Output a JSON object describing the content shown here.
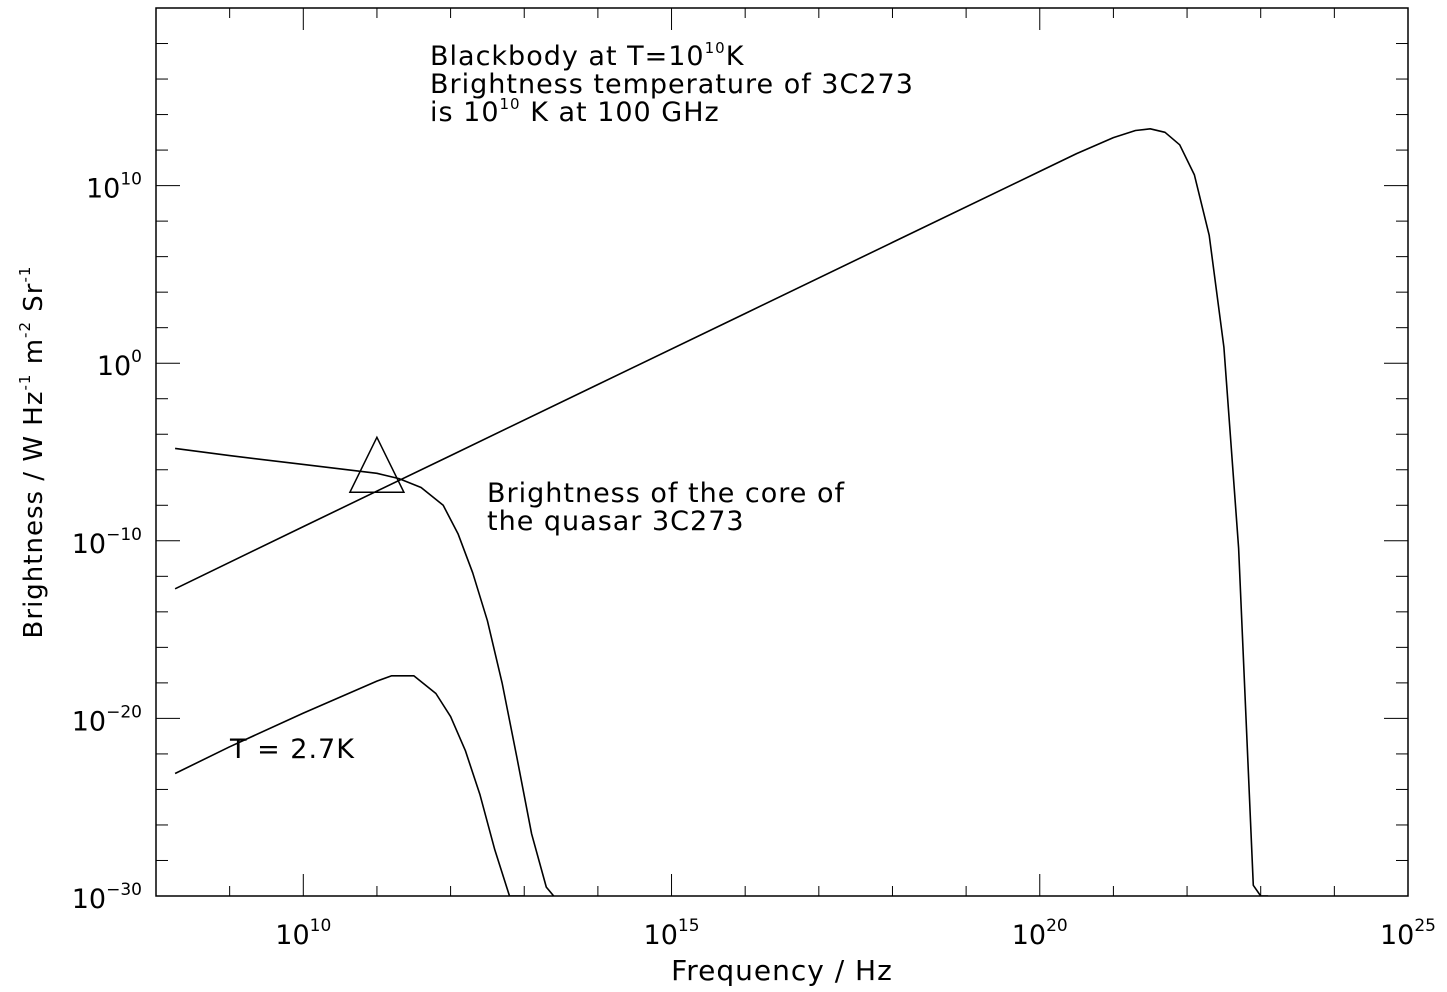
{
  "chart_data": {
    "type": "line",
    "xlabel": "Frequency / Hz",
    "ylabel_parts": [
      "Brightness / W Hz",
      "-1",
      " m",
      "-2",
      " Sr",
      "-1"
    ],
    "xscale": "log",
    "yscale": "log",
    "xlim_log10": [
      8,
      25
    ],
    "ylim_log10": [
      -30,
      20
    ],
    "x_ticks": [
      {
        "base": "10",
        "exp": "10",
        "log": 10
      },
      {
        "base": "10",
        "exp": "15",
        "log": 15
      },
      {
        "base": "10",
        "exp": "20",
        "log": 20
      },
      {
        "base": "10",
        "exp": "25",
        "log": 25
      }
    ],
    "y_ticks": [
      {
        "base": "10",
        "exp": "10",
        "log": 10
      },
      {
        "base": "10",
        "exp": "0",
        "log": 0
      },
      {
        "base": "10",
        "exp": "−10",
        "log": -10
      },
      {
        "base": "10",
        "exp": "−20",
        "log": -20
      },
      {
        "base": "10",
        "exp": "−30",
        "log": -30
      }
    ],
    "grid": false,
    "series": [
      {
        "temperature_K": 10000000000.0,
        "log10_x": [
          8.26,
          10,
          12,
          14,
          16,
          18,
          20,
          20.5,
          21,
          21.3,
          21.5,
          21.7,
          21.9,
          22.1,
          22.3,
          22.5,
          22.7,
          22.9,
          23.0,
          23.1
        ],
        "log10_y": [
          -12.7,
          -9.2,
          -5.2,
          -1.2,
          2.8,
          6.8,
          10.8,
          11.8,
          12.7,
          13.1,
          13.2,
          13.0,
          12.3,
          10.6,
          7.2,
          0.9,
          -10.4,
          -29.4,
          -30,
          -30
        ]
      },
      {
        "log10_x": [
          8.26,
          9,
          10,
          11,
          11.3,
          11.6,
          11.9,
          12.1,
          12.3,
          12.5,
          12.7,
          12.9,
          13.1,
          13.3,
          13.4
        ],
        "log10_y": [
          -4.8,
          -5.2,
          -5.7,
          -6.2,
          -6.5,
          -7.0,
          -8.0,
          -9.6,
          -11.8,
          -14.5,
          -18.0,
          -22.2,
          -26.5,
          -29.5,
          -30
        ]
      },
      {
        "temperature_K": 2.7,
        "log10_x": [
          8.26,
          9,
          10,
          10.5,
          11,
          11.2,
          11.5,
          11.8,
          12.0,
          12.2,
          12.4,
          12.6,
          12.8,
          13.0
        ],
        "log10_y": [
          -23.1,
          -21.6,
          -19.7,
          -18.8,
          -17.9,
          -17.6,
          -17.6,
          -18.6,
          -19.9,
          -21.8,
          -24.3,
          -27.4,
          -30,
          -30
        ]
      }
    ],
    "markers": [
      {
        "shape": "triangle",
        "log10_x": 11.0,
        "log10_y": -7.1
      }
    ],
    "annotations": [
      {
        "lines": [
          [
            {
              "t": "Blackbody at T=10"
            },
            {
              "t": "10",
              "sup": true
            },
            {
              "t": "K"
            }
          ],
          [
            {
              "t": "Brightness temperature of 3C273"
            }
          ],
          [
            {
              "t": "is 10"
            },
            {
              "t": "10",
              "sup": true
            },
            {
              "t": " K at 100 GHz"
            }
          ]
        ]
      },
      {
        "lines": [
          [
            {
              "t": "Brightness of the core of"
            }
          ],
          [
            {
              "t": " the quasar 3C273"
            }
          ]
        ]
      },
      {
        "lines": [
          [
            {
              "t": "T = 2.7K"
            }
          ]
        ]
      }
    ]
  }
}
